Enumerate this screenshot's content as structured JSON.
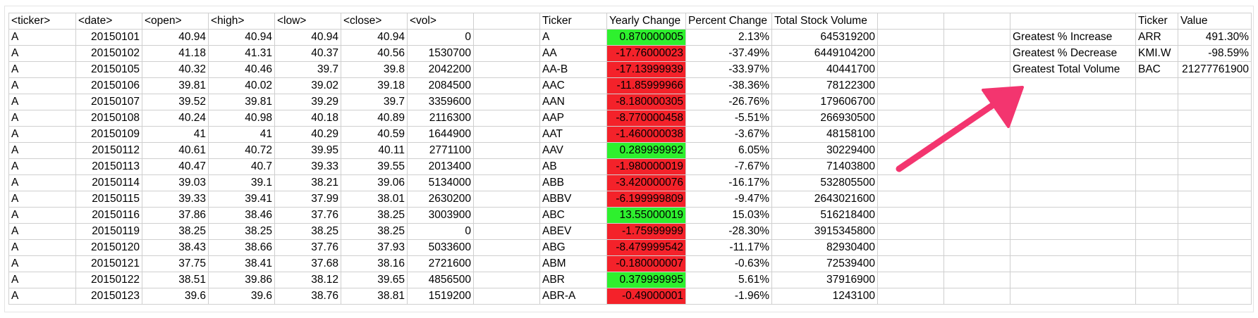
{
  "colors": {
    "positive_fill": "#2ef02e",
    "negative_fill": "#f4222a",
    "grid_line": "#cfcfcf",
    "arrow": "#f3356f"
  },
  "raw_headers": [
    "<ticker>",
    "<date>",
    "<open>",
    "<high>",
    "<low>",
    "<close>",
    "<vol>"
  ],
  "raw_rows": [
    [
      "A",
      "20150101",
      "40.94",
      "40.94",
      "40.94",
      "40.94",
      "0"
    ],
    [
      "A",
      "20150102",
      "41.18",
      "41.31",
      "40.37",
      "40.56",
      "1530700"
    ],
    [
      "A",
      "20150105",
      "40.32",
      "40.46",
      "39.7",
      "39.8",
      "2042200"
    ],
    [
      "A",
      "20150106",
      "39.81",
      "40.02",
      "39.02",
      "39.18",
      "2084500"
    ],
    [
      "A",
      "20150107",
      "39.52",
      "39.81",
      "39.29",
      "39.7",
      "3359600"
    ],
    [
      "A",
      "20150108",
      "40.24",
      "40.98",
      "40.18",
      "40.89",
      "2116300"
    ],
    [
      "A",
      "20150109",
      "41",
      "41",
      "40.29",
      "40.59",
      "1644900"
    ],
    [
      "A",
      "20150112",
      "40.61",
      "40.72",
      "39.95",
      "40.11",
      "2771100"
    ],
    [
      "A",
      "20150113",
      "40.47",
      "40.7",
      "39.33",
      "39.55",
      "2013400"
    ],
    [
      "A",
      "20150114",
      "39.03",
      "39.1",
      "38.21",
      "39.06",
      "5134000"
    ],
    [
      "A",
      "20150115",
      "39.33",
      "39.41",
      "37.99",
      "38.01",
      "2630200"
    ],
    [
      "A",
      "20150116",
      "37.86",
      "38.46",
      "37.76",
      "38.25",
      "3003900"
    ],
    [
      "A",
      "20150119",
      "38.25",
      "38.25",
      "38.25",
      "38.25",
      "0"
    ],
    [
      "A",
      "20150120",
      "38.43",
      "38.66",
      "37.76",
      "37.93",
      "5033600"
    ],
    [
      "A",
      "20150121",
      "37.75",
      "38.41",
      "37.68",
      "38.16",
      "2721600"
    ],
    [
      "A",
      "20150122",
      "38.51",
      "39.86",
      "38.12",
      "39.65",
      "4856500"
    ],
    [
      "A",
      "20150123",
      "39.6",
      "39.6",
      "38.76",
      "38.81",
      "1519200"
    ]
  ],
  "summary_headers": [
    "Ticker",
    "Yearly Change",
    "Percent Change",
    "Total Stock Volume"
  ],
  "summary_rows": [
    {
      "ticker": "A",
      "change": "0.870000005",
      "sign": "pos",
      "percent": "2.13%",
      "volume": "645319200"
    },
    {
      "ticker": "AA",
      "change": "-17.76000023",
      "sign": "neg",
      "percent": "-37.49%",
      "volume": "6449104200"
    },
    {
      "ticker": "AA-B",
      "change": "-17.13999939",
      "sign": "neg",
      "percent": "-33.97%",
      "volume": "40441700"
    },
    {
      "ticker": "AAC",
      "change": "-11.85999966",
      "sign": "neg",
      "percent": "-38.36%",
      "volume": "78122300"
    },
    {
      "ticker": "AAN",
      "change": "-8.180000305",
      "sign": "neg",
      "percent": "-26.76%",
      "volume": "179606700"
    },
    {
      "ticker": "AAP",
      "change": "-8.770000458",
      "sign": "neg",
      "percent": "-5.51%",
      "volume": "266930500"
    },
    {
      "ticker": "AAT",
      "change": "-1.460000038",
      "sign": "neg",
      "percent": "-3.67%",
      "volume": "48158100"
    },
    {
      "ticker": "AAV",
      "change": "0.289999992",
      "sign": "pos",
      "percent": "6.05%",
      "volume": "30229400"
    },
    {
      "ticker": "AB",
      "change": "-1.980000019",
      "sign": "neg",
      "percent": "-7.67%",
      "volume": "71403800"
    },
    {
      "ticker": "ABB",
      "change": "-3.420000076",
      "sign": "neg",
      "percent": "-16.17%",
      "volume": "532805500"
    },
    {
      "ticker": "ABBV",
      "change": "-6.199999809",
      "sign": "neg",
      "percent": "-9.47%",
      "volume": "2643021600"
    },
    {
      "ticker": "ABC",
      "change": "13.55000019",
      "sign": "pos",
      "percent": "15.03%",
      "volume": "516218400"
    },
    {
      "ticker": "ABEV",
      "change": "-1.75999999",
      "sign": "neg",
      "percent": "-28.30%",
      "volume": "3915345800"
    },
    {
      "ticker": "ABG",
      "change": "-8.479999542",
      "sign": "neg",
      "percent": "-11.17%",
      "volume": "82930400"
    },
    {
      "ticker": "ABM",
      "change": "-0.180000007",
      "sign": "neg",
      "percent": "-0.63%",
      "volume": "72539400"
    },
    {
      "ticker": "ABR",
      "change": "0.379999995",
      "sign": "pos",
      "percent": "5.61%",
      "volume": "37916900"
    },
    {
      "ticker": "ABR-A",
      "change": "-0.49000001",
      "sign": "neg",
      "percent": "-1.96%",
      "volume": "1243100"
    }
  ],
  "greatest_headers": [
    "Ticker",
    "Value"
  ],
  "greatest_rows": [
    {
      "label": "Greatest % Increase",
      "ticker": "ARR",
      "value": "491.30%"
    },
    {
      "label": "Greatest % Decrease",
      "ticker": "KMI.W",
      "value": "-98.59%"
    },
    {
      "label": "Greatest Total Volume",
      "ticker": "BAC",
      "value": "21277761900"
    }
  ]
}
